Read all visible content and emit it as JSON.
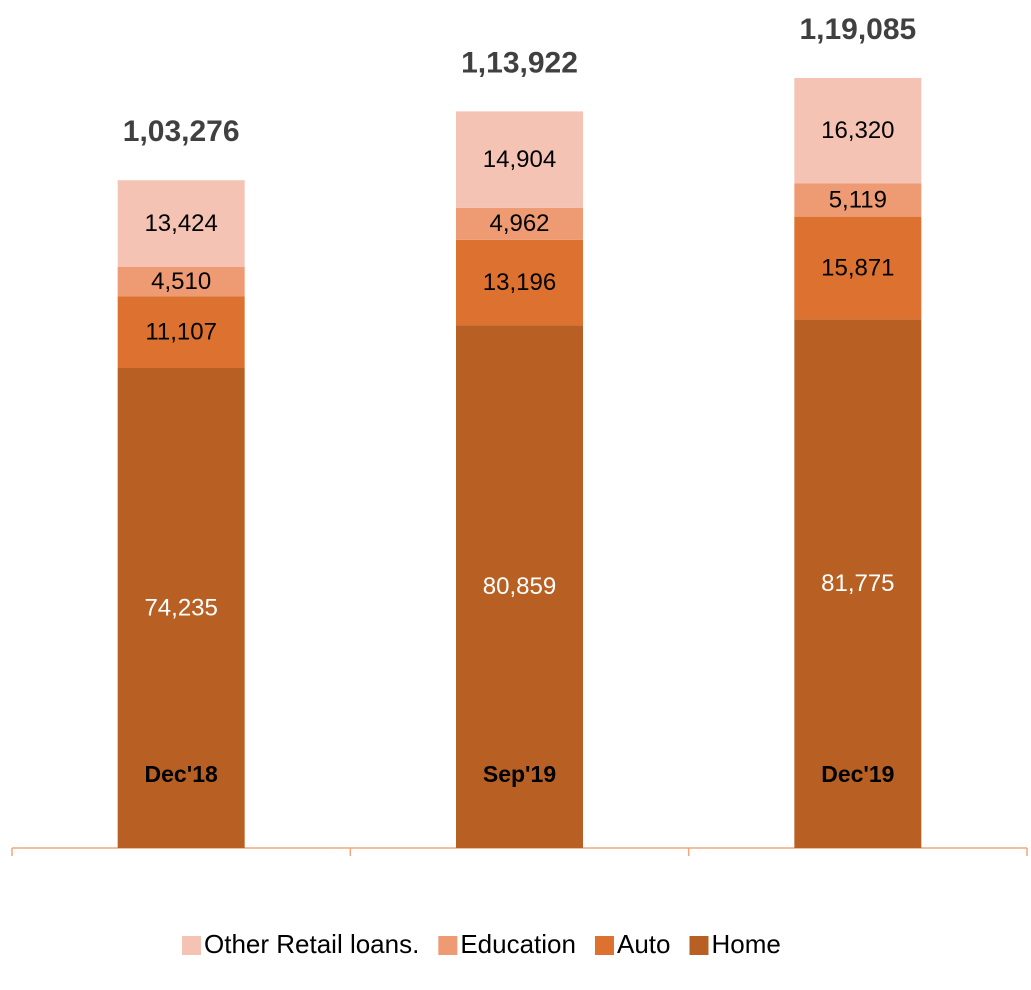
{
  "chart_data": {
    "type": "stacked_bar",
    "categories": [
      "Dec'18",
      "Sep'19",
      "Dec'19"
    ],
    "series": [
      {
        "name": "Other Retail loans.",
        "color": "#f5c3b3",
        "values": [
          13424,
          14904,
          16320
        ],
        "value_labels": [
          "13,424",
          "14,904",
          "16,320"
        ]
      },
      {
        "name": "Education",
        "color": "#ee9a72",
        "values": [
          4510,
          4962,
          5119
        ],
        "value_labels": [
          "4,510",
          "4,962",
          "5,119"
        ]
      },
      {
        "name": "Auto",
        "color": "#dd7230",
        "values": [
          11107,
          13196,
          15871
        ],
        "value_labels": [
          "11,107",
          "13,196",
          "15,871"
        ]
      },
      {
        "name": "Home",
        "color": "#b86023",
        "values": [
          74235,
          80859,
          81775
        ],
        "value_labels": [
          "74,235",
          "80,859",
          "81,775"
        ]
      }
    ],
    "totals": {
      "values": [
        103276,
        113922,
        119085
      ],
      "value_labels": [
        "1,03,276",
        "1,13,922",
        "1,19,085"
      ]
    }
  }
}
